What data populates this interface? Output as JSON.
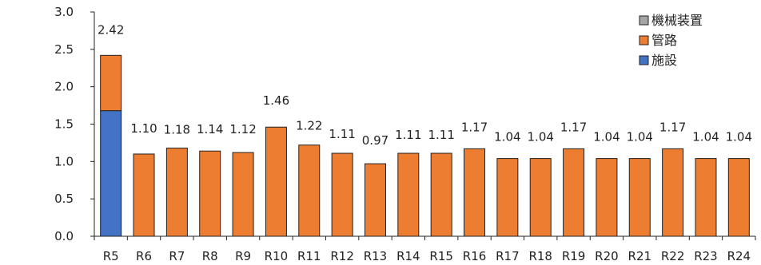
{
  "chart_data": {
    "type": "bar",
    "stacked": true,
    "categories": [
      "R5",
      "R6",
      "R7",
      "R8",
      "R9",
      "R10",
      "R11",
      "R12",
      "R13",
      "R14",
      "R15",
      "R16",
      "R17",
      "R18",
      "R19",
      "R20",
      "R21",
      "R22",
      "R23",
      "R24"
    ],
    "series": [
      {
        "name": "施設",
        "color": "#4472C4",
        "values": [
          1.68,
          0,
          0,
          0,
          0,
          0,
          0,
          0,
          0,
          0,
          0,
          0,
          0,
          0,
          0,
          0,
          0,
          0,
          0,
          0
        ]
      },
      {
        "name": "管路",
        "color": "#ED7D31",
        "values": [
          0.74,
          1.1,
          1.18,
          1.14,
          1.12,
          1.46,
          1.22,
          1.11,
          0.97,
          1.11,
          1.11,
          1.17,
          1.04,
          1.04,
          1.17,
          1.04,
          1.04,
          1.17,
          1.04,
          1.04
        ]
      },
      {
        "name": "機械装置",
        "color": "#A5A5A5",
        "values": [
          0,
          0,
          0,
          0,
          0,
          0,
          0,
          0,
          0,
          0,
          0,
          0,
          0,
          0,
          0,
          0,
          0,
          0,
          0,
          0
        ]
      }
    ],
    "totals": [
      "2.42",
      "1.10",
      "1.18",
      "1.14",
      "1.12",
      "1.46",
      "1.22",
      "1.11",
      "0.97",
      "1.11",
      "1.11",
      "1.17",
      "1.04",
      "1.04",
      "1.17",
      "1.04",
      "1.04",
      "1.17",
      "1.04",
      "1.04"
    ],
    "yticks": [
      "0.0",
      "0.5",
      "1.0",
      "1.5",
      "2.0",
      "2.5",
      "3.0"
    ],
    "ylim": [
      0,
      3.0
    ],
    "legend_order": [
      "機械装置",
      "管路",
      "施設"
    ],
    "legend_position": "top-right",
    "grid": false
  }
}
